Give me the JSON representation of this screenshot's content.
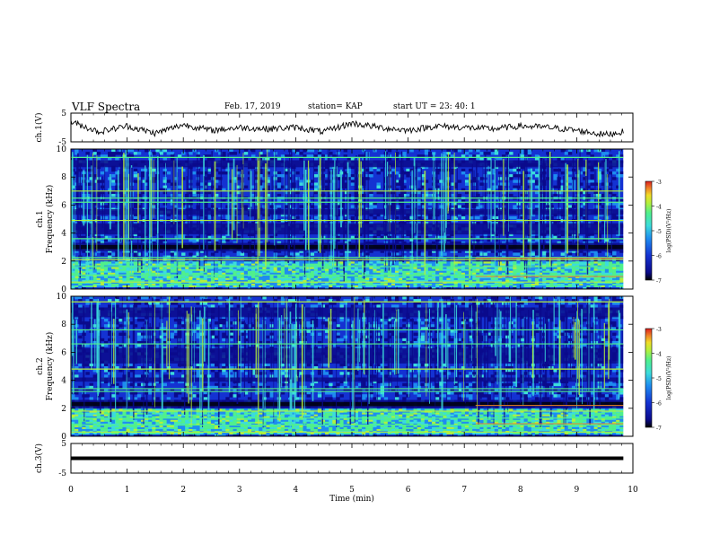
{
  "header": {
    "title": "VLF Spectra",
    "date": "Feb. 17, 2019",
    "station": "station= KAP",
    "start": "start  UT =   23: 40: 1"
  },
  "colors": {
    "trace": "#000000",
    "colormap": [
      "#000000",
      "#0a0a8c",
      "#1432d2",
      "#1e8cf0",
      "#3cdcdc",
      "#50f08c",
      "#b4f03c",
      "#f0dc28",
      "#f08228",
      "#dc1e1e"
    ]
  },
  "chart_data": [
    {
      "type": "line",
      "panel": "ch1-voltage",
      "ylabel": "ch.1(V)",
      "ylim": [
        -5,
        5
      ],
      "yticks": [
        "5",
        "-5"
      ],
      "x": [
        0,
        0.5,
        1,
        1.5,
        2,
        2.5,
        3,
        3.5,
        4,
        4.5,
        5,
        5.5,
        6,
        6.5,
        7,
        7.5,
        8,
        8.5,
        9,
        9.5,
        9.83
      ],
      "y": [
        2.0,
        -1.5,
        0.5,
        -2.0,
        1.0,
        -1.0,
        0.0,
        -0.5,
        0.0,
        -1.5,
        1.5,
        0.0,
        -1.0,
        0.5,
        0.0,
        -0.5,
        0.5,
        0.0,
        -1.0,
        -2.5,
        -1.5
      ]
    },
    {
      "type": "heatmap",
      "panel": "ch1-spectrogram",
      "ylabel_line1": "ch.1",
      "ylabel_line2": "Frequency  (kHz)",
      "ylim": [
        0,
        10
      ],
      "yticks": [
        "0",
        "2",
        "4",
        "6",
        "8",
        "10"
      ],
      "xlim": [
        0,
        9.83
      ],
      "x_unit": "min",
      "y_unit": "kHz",
      "dark_bands_khz": [
        [
          2.7,
          3.3
        ],
        [
          3.9,
          4.7
        ],
        [
          5.3,
          5.7
        ],
        [
          8.7,
          9.2
        ]
      ],
      "bright_lines_khz": [
        0.5,
        1.0,
        1.6,
        2.1,
        2.25,
        3.6,
        4.9,
        6.2,
        6.5,
        7.0,
        9.4
      ],
      "colorbar": {
        "label": "log(PSD)(V²/Hz)",
        "range": [
          -7,
          -3
        ],
        "ticks": [
          "-3",
          "-4",
          "-5",
          "-6",
          "-7"
        ]
      }
    },
    {
      "type": "heatmap",
      "panel": "ch2-spectrogram",
      "ylabel_line1": "ch.2",
      "ylabel_line2": "Frequency  (kHz)",
      "ylim": [
        0,
        10
      ],
      "yticks": [
        "0",
        "2",
        "4",
        "6",
        "8",
        "10"
      ],
      "xlim": [
        0,
        9.83
      ],
      "x_unit": "min",
      "y_unit": "kHz",
      "dark_bands_khz": [
        [
          2.0,
          2.6
        ],
        [
          3.9,
          4.2
        ],
        [
          5.2,
          6.3
        ],
        [
          8.5,
          9.2
        ]
      ],
      "bright_lines_khz": [
        0.3,
        0.8,
        1.3,
        1.8,
        3.2,
        3.4,
        4.8,
        6.6,
        7.6,
        9.6
      ],
      "colorbar": {
        "label": "log(PSD)(V²/Hz)",
        "range": [
          -7,
          -3
        ],
        "ticks": [
          "-3",
          "-4",
          "-5",
          "-6",
          "-7"
        ]
      }
    },
    {
      "type": "line",
      "panel": "ch3-voltage",
      "ylabel": "ch.3(V)",
      "ylim": [
        -5,
        5
      ],
      "yticks": [
        "5",
        "-5"
      ],
      "x": [
        0,
        9.83
      ],
      "y": [
        0,
        0
      ]
    }
  ],
  "xaxis": {
    "label": "Time  (min)",
    "xlim": [
      0,
      10
    ],
    "ticks": [
      "0",
      "1",
      "2",
      "3",
      "4",
      "5",
      "6",
      "7",
      "8",
      "9",
      "10"
    ]
  }
}
